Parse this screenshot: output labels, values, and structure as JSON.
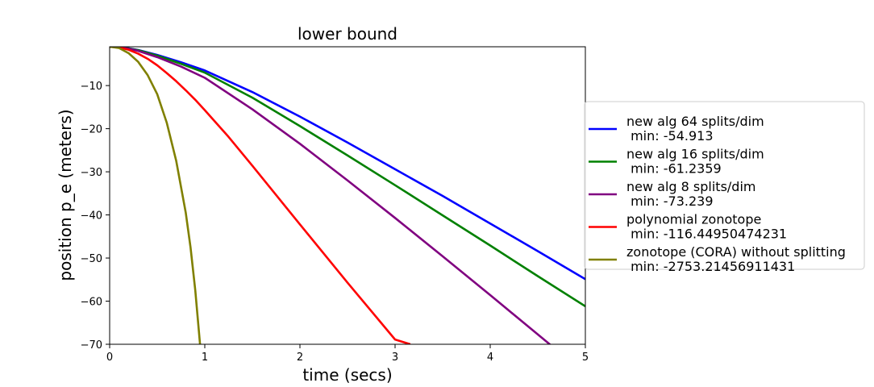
{
  "chart_data": {
    "type": "line",
    "title": "lower bound",
    "xlabel": "time (secs)",
    "ylabel": "position p_e (meters)",
    "xlim": [
      0,
      5
    ],
    "ylim": [
      -70,
      -1
    ],
    "xticks": [
      0,
      1,
      2,
      3,
      4,
      5
    ],
    "yticks": [
      -10,
      -20,
      -30,
      -40,
      -50,
      -60,
      -70
    ],
    "grid": false,
    "legend_position": "outside right",
    "series": [
      {
        "name": "new alg 64 splits/dim",
        "min_label": " min: -54.913",
        "color": "#0000ff",
        "x": [
          0,
          0.1,
          0.2,
          0.3,
          0.5,
          0.75,
          1.0,
          1.5,
          2.0,
          2.5,
          3.0,
          3.5,
          4.0,
          4.5,
          5.0
        ],
        "y": [
          -1,
          -1.07,
          -1.35,
          -1.75,
          -2.9,
          -4.6,
          -6.5,
          -11.5,
          -17.2,
          -23.2,
          -29.4,
          -35.6,
          -42.0,
          -48.4,
          -54.9
        ]
      },
      {
        "name": "new alg 16 splits/dim",
        "min_label": " min: -61.2359",
        "color": "#008000",
        "x": [
          0,
          0.1,
          0.2,
          0.3,
          0.5,
          0.75,
          1.0,
          1.5,
          2.0,
          2.5,
          3.0,
          3.5,
          4.0,
          4.5,
          5.0
        ],
        "y": [
          -1,
          -1.08,
          -1.38,
          -1.8,
          -3.05,
          -4.95,
          -7.0,
          -12.8,
          -19.4,
          -26.2,
          -33.1,
          -40.1,
          -47.1,
          -54.2,
          -61.2
        ]
      },
      {
        "name": "new alg 8 splits/dim",
        "min_label": " min: -73.239",
        "color": "#800080",
        "x": [
          0,
          0.1,
          0.2,
          0.3,
          0.5,
          0.75,
          1.0,
          1.5,
          2.0,
          2.5,
          3.0,
          3.5,
          4.0,
          4.5,
          4.8
        ],
        "y": [
          -1,
          -1.1,
          -1.45,
          -1.95,
          -3.4,
          -5.6,
          -8.2,
          -15.5,
          -23.5,
          -32.0,
          -40.7,
          -49.6,
          -58.6,
          -67.7,
          -73.2
        ]
      },
      {
        "name": "polynomial zonotope",
        "min_label": " min: -116.44950474231",
        "color": "#ff0000",
        "x": [
          0,
          0.1,
          0.2,
          0.3,
          0.4,
          0.5,
          0.6,
          0.7,
          0.8,
          0.9,
          1.0,
          1.25,
          1.5,
          1.75,
          2.0,
          2.5,
          3.0,
          3.16
        ],
        "y": [
          -1,
          -1.15,
          -1.7,
          -2.6,
          -3.8,
          -5.3,
          -7.1,
          -9.0,
          -11.1,
          -13.3,
          -15.7,
          -21.9,
          -28.6,
          -35.4,
          -42.2,
          -55.7,
          -68.9,
          -70
        ]
      },
      {
        "name": "zonotope (CORA) without splitting",
        "min_label": " min: -2753.21456911431",
        "color": "#808000",
        "x": [
          0,
          0.1,
          0.2,
          0.3,
          0.4,
          0.5,
          0.6,
          0.7,
          0.8,
          0.85,
          0.9,
          0.95
        ],
        "y": [
          -1,
          -1.3,
          -2.5,
          -4.5,
          -7.6,
          -12.0,
          -18.6,
          -27.5,
          -39.5,
          -47.5,
          -57.5,
          -70
        ]
      }
    ]
  }
}
